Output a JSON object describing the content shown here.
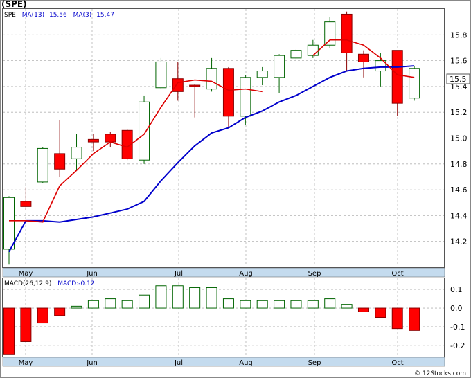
{
  "ticker_label": "(SPE)",
  "watermark": "© 12Stocks.com",
  "price_panel": {
    "legend": {
      "symbol": "SPE",
      "ma13_label": "MA(13)",
      "ma13_value": "15.56",
      "ma3_label": "MA(3)",
      "ma3_value": "15.47"
    },
    "current_price_label": "15.5"
  },
  "macd_panel": {
    "legend": {
      "label": "MACD(26,12,9)",
      "value_label": "MACD:-0.12"
    }
  },
  "colors": {
    "up_fill": "#ffffff",
    "up_stroke": "#006400",
    "down_fill": "#ff0000",
    "down_stroke": "#8b0000",
    "ma13": "#0000cc",
    "ma3": "#dd0000",
    "axis_bar": "#c4dbee",
    "grid": "#b4b4b4",
    "macd_bar_pos": "#ffffff",
    "macd_stroke": "#006400"
  },
  "chart_data": [
    {
      "type": "candlestick",
      "title": "(SPE)",
      "x_labels": [
        "May",
        "Jun",
        "Jul",
        "Aug",
        "Sep",
        "Oct"
      ],
      "y_ticks": [
        14.2,
        14.4,
        14.6,
        14.8,
        15.0,
        15.2,
        15.4,
        15.6,
        15.8
      ],
      "ylim": [
        14.0,
        16.0
      ],
      "grid": true,
      "candles": [
        {
          "o": 14.14,
          "h": 14.55,
          "l": 14.02,
          "c": 14.54
        },
        {
          "o": 14.51,
          "h": 14.62,
          "l": 14.44,
          "c": 14.47
        },
        {
          "o": 14.66,
          "h": 14.93,
          "l": 14.65,
          "c": 14.92
        },
        {
          "o": 14.88,
          "h": 15.14,
          "l": 14.7,
          "c": 14.76
        },
        {
          "o": 14.84,
          "h": 15.03,
          "l": 14.75,
          "c": 14.93
        },
        {
          "o": 14.99,
          "h": 15.03,
          "l": 14.9,
          "c": 14.97
        },
        {
          "o": 15.03,
          "h": 15.05,
          "l": 14.93,
          "c": 14.97
        },
        {
          "o": 15.06,
          "h": 15.07,
          "l": 14.83,
          "c": 14.84
        },
        {
          "o": 14.83,
          "h": 15.33,
          "l": 14.8,
          "c": 15.28
        },
        {
          "o": 15.39,
          "h": 15.62,
          "l": 15.38,
          "c": 15.59
        },
        {
          "o": 15.46,
          "h": 15.59,
          "l": 15.29,
          "c": 15.36
        },
        {
          "o": 15.41,
          "h": 15.42,
          "l": 15.16,
          "c": 15.4
        },
        {
          "o": 15.38,
          "h": 15.62,
          "l": 15.36,
          "c": 15.54
        },
        {
          "o": 15.54,
          "h": 15.55,
          "l": 15.08,
          "c": 15.17
        },
        {
          "o": 15.17,
          "h": 15.49,
          "l": 15.1,
          "c": 15.47
        },
        {
          "o": 15.47,
          "h": 15.55,
          "l": 15.41,
          "c": 15.52
        },
        {
          "o": 15.47,
          "h": 15.65,
          "l": 15.35,
          "c": 15.64
        },
        {
          "o": 15.62,
          "h": 15.69,
          "l": 15.6,
          "c": 15.68
        },
        {
          "o": 15.64,
          "h": 15.76,
          "l": 15.62,
          "c": 15.72
        },
        {
          "o": 15.72,
          "h": 15.94,
          "l": 15.7,
          "c": 15.9
        },
        {
          "o": 15.96,
          "h": 15.98,
          "l": 15.52,
          "c": 15.66
        },
        {
          "o": 15.65,
          "h": 15.68,
          "l": 15.47,
          "c": 15.59
        },
        {
          "o": 15.52,
          "h": 15.66,
          "l": 15.4,
          "c": 15.6
        },
        {
          "o": 15.68,
          "h": 15.68,
          "l": 15.17,
          "c": 15.27
        },
        {
          "o": 15.31,
          "h": 15.56,
          "l": 15.29,
          "c": 15.54
        }
      ],
      "ma13": [
        14.12,
        14.36,
        14.36,
        14.35,
        14.37,
        14.39,
        14.42,
        14.45,
        14.51,
        14.67,
        14.81,
        14.94,
        15.04,
        15.08,
        15.16,
        15.21,
        15.28,
        15.33,
        15.4,
        15.47,
        15.52,
        15.54,
        15.55,
        15.55,
        15.56
      ],
      "ma3": [
        14.36,
        14.36,
        14.35,
        14.63,
        14.75,
        14.88,
        14.97,
        14.93,
        15.03,
        15.24,
        15.43,
        15.45,
        15.44,
        15.37,
        15.38,
        15.36,
        null,
        null,
        15.64,
        15.76,
        15.76,
        15.72,
        15.62,
        15.49,
        15.47
      ]
    },
    {
      "type": "bar",
      "title": "MACD(26,12,9)",
      "y_ticks": [
        -0.2,
        -0.1,
        0.0,
        0.1
      ],
      "ylim": [
        -0.26,
        0.16
      ],
      "x_labels": [
        "May",
        "Jun",
        "Jul",
        "Aug",
        "Sep",
        "Oct"
      ],
      "values": [
        -0.25,
        -0.18,
        -0.08,
        -0.04,
        0.01,
        0.04,
        0.05,
        0.04,
        0.07,
        0.12,
        0.12,
        0.11,
        0.11,
        0.05,
        0.04,
        0.04,
        0.04,
        0.04,
        0.04,
        0.05,
        0.02,
        -0.02,
        -0.05,
        -0.11,
        -0.12
      ]
    }
  ]
}
